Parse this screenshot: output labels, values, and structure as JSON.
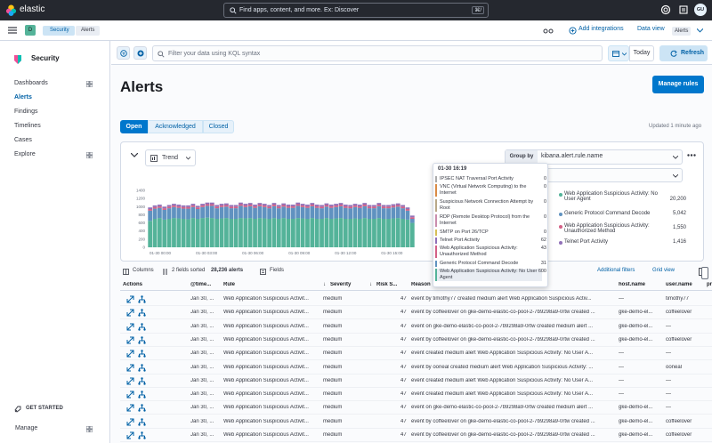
{
  "app": {
    "brand": "elastic"
  },
  "topbar": {
    "search_placeholder": "Find apps, content, and more. Ex: Discover",
    "shortcut": "⌘/",
    "avatar": "GU"
  },
  "subbar": {
    "space_badge": "D",
    "breadcrumbs": [
      "Security",
      "Alerts"
    ],
    "add_integrations": "Add integrations",
    "data_view_label": "Data view",
    "data_view_value": "Alerts"
  },
  "sidebar": {
    "title": "Security",
    "items": [
      {
        "label": "Dashboards",
        "grid": true,
        "active": false
      },
      {
        "label": "Alerts",
        "grid": false,
        "active": true
      },
      {
        "label": "Findings",
        "grid": false,
        "active": false
      },
      {
        "label": "Timelines",
        "grid": false,
        "active": false
      },
      {
        "label": "Cases",
        "grid": false,
        "active": false
      },
      {
        "label": "Explore",
        "grid": true,
        "active": false
      }
    ],
    "get_started": "GET STARTED",
    "manage": "Manage"
  },
  "query": {
    "placeholder": "Filter your data using KQL syntax",
    "today": "Today",
    "refresh": "Refresh"
  },
  "page": {
    "title": "Alerts",
    "manage_rules": "Manage rules",
    "updated": "Updated 1 minute ago"
  },
  "status_tabs": [
    {
      "label": "Open",
      "selected": true
    },
    {
      "label": "Acknowledged",
      "selected": false
    },
    {
      "label": "Closed",
      "selected": false
    }
  ],
  "chart_controls": {
    "view": "Trend",
    "group_by_label": "Group by",
    "group_by_value": "kibana.alert.rule.name"
  },
  "legend": [
    {
      "label": "Web Application Suspicious Activity: No User Agent",
      "value": "20,200",
      "color": "#54b399"
    },
    {
      "label": "Generic Protocol Command Decode",
      "value": "5,042",
      "color": "#6092c0"
    },
    {
      "label": "Web Application Suspicious Activity: Unauthorized Method",
      "value": "1,550",
      "color": "#d36086"
    },
    {
      "label": "Telnet Port Activity",
      "value": "1,416",
      "color": "#9170b8"
    }
  ],
  "chart_data": {
    "type": "bar",
    "stacked": true,
    "ylim": [
      0,
      1400
    ],
    "yticks": [
      "1400",
      "1200",
      "1000",
      "800",
      "600",
      "400",
      "200",
      "0"
    ],
    "xticks": [
      "01-30 00:00",
      "01-30 03:00",
      "01-30 06:00",
      "01-30 09:00",
      "01-30 12:00",
      "01-30 15:00"
    ],
    "series": [
      {
        "name": "Web Application Suspicious Activity: No User Agent",
        "color": "#54b399",
        "values": [
          650,
          700,
          720,
          680,
          700,
          720,
          710,
          700,
          690,
          720,
          700,
          720,
          730,
          720,
          700,
          710,
          720,
          700,
          700,
          720,
          710,
          720,
          700,
          720,
          710,
          700,
          720,
          700,
          720,
          700,
          700,
          720,
          710,
          700,
          720,
          700,
          700,
          720,
          700,
          710,
          720,
          700,
          700,
          710,
          700,
          720,
          700,
          700,
          720,
          700,
          700,
          710,
          720,
          700,
          680,
          600
        ]
      },
      {
        "name": "Generic Protocol Command Decode",
        "color": "#6092c0",
        "values": [
          250,
          250,
          250,
          240,
          260,
          270,
          260,
          250,
          260,
          270,
          240,
          270,
          290,
          300,
          260,
          280,
          280,
          260,
          260,
          300,
          280,
          290,
          270,
          290,
          280,
          260,
          290,
          260,
          280,
          270,
          270,
          300,
          280,
          270,
          290,
          270,
          260,
          280,
          270,
          280,
          290,
          270,
          260,
          280,
          270,
          290,
          260,
          260,
          290,
          260,
          260,
          270,
          280,
          260,
          220,
          100
        ]
      },
      {
        "name": "Web Application Suspicious Activity: Unauthorized Method",
        "color": "#d36086",
        "values": [
          40,
          40,
          40,
          40,
          40,
          40,
          40,
          40,
          40,
          40,
          40,
          40,
          40,
          40,
          40,
          40,
          40,
          40,
          40,
          40,
          40,
          40,
          40,
          40,
          40,
          40,
          40,
          40,
          40,
          40,
          40,
          40,
          40,
          40,
          40,
          40,
          40,
          40,
          40,
          40,
          40,
          40,
          40,
          40,
          40,
          40,
          40,
          40,
          40,
          40,
          40,
          40,
          40,
          40,
          40,
          40
        ]
      },
      {
        "name": "Telnet Port Activity",
        "color": "#9170b8",
        "values": [
          40,
          40,
          40,
          40,
          40,
          40,
          40,
          40,
          40,
          40,
          40,
          40,
          40,
          40,
          40,
          40,
          40,
          40,
          40,
          40,
          40,
          40,
          40,
          40,
          40,
          40,
          40,
          40,
          40,
          40,
          40,
          40,
          40,
          40,
          40,
          40,
          40,
          40,
          40,
          40,
          40,
          40,
          40,
          40,
          40,
          40,
          40,
          40,
          40,
          40,
          40,
          40,
          40,
          40,
          40,
          40
        ]
      }
    ]
  },
  "tooltip": {
    "title": "01-30 16:19",
    "rows": [
      {
        "label": "IPSEC NAT Traversal Port Activity",
        "value": "0",
        "color": "#aaaaaa"
      },
      {
        "label": "VNC (Virtual Network Computing) to the Internet",
        "value": "0",
        "color": "#da8b45"
      },
      {
        "label": "Suspicious Network Connection Attempt by Root",
        "value": "0",
        "color": "#b9a888"
      },
      {
        "label": "RDP (Remote Desktop Protocol) from the Internet",
        "value": "0",
        "color": "#ca8eae"
      },
      {
        "label": "SMTP on Port 26/TCP",
        "value": "0",
        "color": "#d6bf57"
      },
      {
        "label": "Telnet Port Activity",
        "value": "62",
        "color": "#9170b8"
      },
      {
        "label": "Web Application Suspicious Activity: Unauthorized Method",
        "value": "43",
        "color": "#d36086"
      },
      {
        "label": "Generic Protocol Command Decode",
        "value": "31",
        "color": "#6092c0"
      },
      {
        "label": "Web Application Suspicious Activity: No User Agent",
        "value": "600",
        "color": "#54b399"
      }
    ]
  },
  "table_toolbar": {
    "columns": "Columns",
    "sorted": "2 fields sorted",
    "count": "28,236 alerts",
    "fields": "Fields",
    "additional_filters": "Additional filters",
    "grid_view": "Grid view"
  },
  "table": {
    "headers": [
      "Actions",
      "@time...",
      "Rule",
      "Severity",
      "Risk S...",
      "Reason",
      "host.name",
      "user.name",
      "pr"
    ],
    "rows": [
      {
        "time": "Jan 30, ...",
        "rule": "Web Application Suspicious Activit...",
        "severity": "medium",
        "risk": "47",
        "reason": "event by timothy77 created medium alert Web Application Suspicious Activ...",
        "host": "—",
        "user": "timothy77"
      },
      {
        "time": "Jan 30, ...",
        "rule": "Web Application Suspicious Activit...",
        "severity": "medium",
        "risk": "47",
        "reason": "event by coffeelover on gke-demo-elastic-co-pool-2-7b9298a9-0rtw created ...",
        "host": "gke-demo-el...",
        "user": "coffeelover"
      },
      {
        "time": "Jan 30, ...",
        "rule": "Web Application Suspicious Activit...",
        "severity": "medium",
        "risk": "47",
        "reason": "event on gke-demo-elastic-co-pool-2-7b9298a9-0rtw created medium alert ...",
        "host": "gke-demo-el...",
        "user": "—"
      },
      {
        "time": "Jan 30, ...",
        "rule": "Web Application Suspicious Activit...",
        "severity": "medium",
        "risk": "47",
        "reason": "event by coffeelover on gke-demo-elastic-co-pool-2-7b9298a9-0rtw created ...",
        "host": "gke-demo-el...",
        "user": "coffeelover"
      },
      {
        "time": "Jan 30, ...",
        "rule": "Web Application Suspicious Activit...",
        "severity": "medium",
        "risk": "47",
        "reason": "event created medium alert Web Application Suspicious Activity: No User A...",
        "host": "—",
        "user": "—"
      },
      {
        "time": "Jan 30, ...",
        "rule": "Web Application Suspicious Activit...",
        "severity": "medium",
        "risk": "47",
        "reason": "event by ooneal created medium alert Web Application Suspicious Activity: ...",
        "host": "—",
        "user": "ooneal"
      },
      {
        "time": "Jan 30, ...",
        "rule": "Web Application Suspicious Activit...",
        "severity": "medium",
        "risk": "47",
        "reason": "event created medium alert Web Application Suspicious Activity: No User A...",
        "host": "—",
        "user": "—"
      },
      {
        "time": "Jan 30, ...",
        "rule": "Web Application Suspicious Activit...",
        "severity": "medium",
        "risk": "47",
        "reason": "event created medium alert Web Application Suspicious Activity: No User A...",
        "host": "—",
        "user": "—"
      },
      {
        "time": "Jan 30, ...",
        "rule": "Web Application Suspicious Activit...",
        "severity": "medium",
        "risk": "47",
        "reason": "event on gke-demo-elastic-co-pool-2-7b9298a9-0rtw created medium alert ...",
        "host": "gke-demo-el...",
        "user": "—"
      },
      {
        "time": "Jan 30, ...",
        "rule": "Web Application Suspicious Activit...",
        "severity": "medium",
        "risk": "47",
        "reason": "event by coffeelover on gke-demo-elastic-co-pool-2-7b9298a9-0rtw created ...",
        "host": "gke-demo-el...",
        "user": "coffeelover"
      },
      {
        "time": "Jan 30, ...",
        "rule": "Web Application Suspicious Activit...",
        "severity": "medium",
        "risk": "47",
        "reason": "event by coffeelover on gke-demo-elastic-co-pool-2-7b9298a9-0rtw created ...",
        "host": "gke-demo-el...",
        "user": "coffeelover"
      }
    ]
  }
}
